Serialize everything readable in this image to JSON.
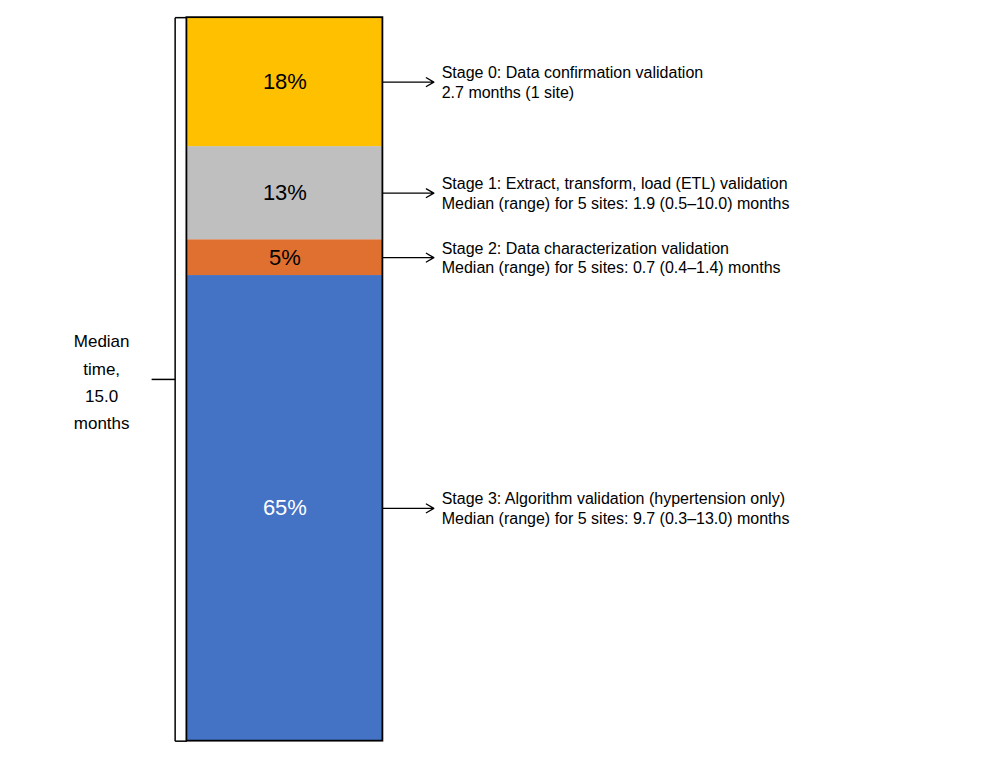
{
  "chart_data": {
    "type": "bar",
    "stacked": true,
    "data_labels": true,
    "tick_labels": false,
    "values": [
      65,
      5,
      13,
      18
    ],
    "value_labels": [
      "65%",
      "5%",
      "13%",
      "18%"
    ],
    "colors": [
      "#4472C4",
      "#E07030",
      "#BFBFBF",
      "#FFC000"
    ],
    "ylim": [
      -2,
      102
    ],
    "annotations": [
      {
        "text": [
          "Stage 0: Data confirmation validation",
          "2.7 months (1 site)"
        ]
      },
      {
        "text": [
          "Stage 1: Extract, transform, load (ETL) validation",
          "Median (range) for 5 sites: 1.9 (0.5–10.0) months"
        ]
      },
      {
        "text": [
          "Stage 2: Data characterization validation",
          "Median (range) for 5 sites: 0.7 (0.4–1.4) months"
        ]
      },
      {
        "text": [
          "Stage 3: Algorithm validation (hypertension only)",
          "Median (range) for 5 sites: 9.7 (0.3–13.0) months"
        ]
      }
    ],
    "bracket_label": [
      "Median",
      "time,",
      "15.0",
      "months"
    ]
  }
}
